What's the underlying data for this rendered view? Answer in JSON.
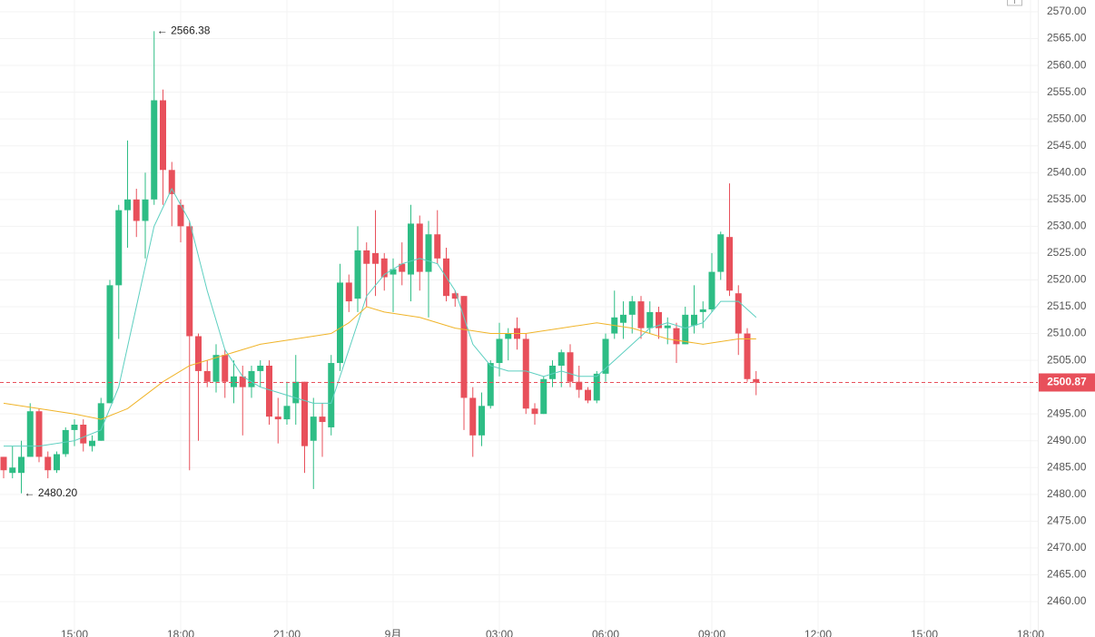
{
  "chart_data": {
    "type": "candlestick",
    "up_color": "#2ebd85",
    "down_color": "#e8505b",
    "grid": true,
    "xlim": [
      -0.41,
      116.82
    ],
    "ylim": [
      2453.4,
      2572.2
    ],
    "xticks": [
      {
        "value": 8,
        "label": "15:00"
      },
      {
        "value": 20,
        "label": "18:00"
      },
      {
        "value": 32,
        "label": "21:00"
      },
      {
        "value": 44,
        "label": "9月"
      },
      {
        "value": 56,
        "label": "03:00"
      },
      {
        "value": 68,
        "label": "06:00"
      },
      {
        "value": 80,
        "label": "09:00"
      },
      {
        "value": 92,
        "label": "12:00"
      },
      {
        "value": 104,
        "label": "15:00"
      },
      {
        "value": 116,
        "label": "18:00"
      }
    ],
    "yticks": [
      {
        "value": 2460,
        "label": "2460.00"
      },
      {
        "value": 2465,
        "label": "2465.00"
      },
      {
        "value": 2470,
        "label": "2470.00"
      },
      {
        "value": 2475,
        "label": "2475.00"
      },
      {
        "value": 2480,
        "label": "2480.00"
      },
      {
        "value": 2485,
        "label": "2485.00"
      },
      {
        "value": 2490,
        "label": "2490.00"
      },
      {
        "value": 2495,
        "label": "2495.00"
      },
      {
        "value": 2500,
        "label": "2500.00"
      },
      {
        "value": 2505,
        "label": "2505.00"
      },
      {
        "value": 2510,
        "label": "2510.00"
      },
      {
        "value": 2515,
        "label": "2515.00"
      },
      {
        "value": 2520,
        "label": "2520.00"
      },
      {
        "value": 2525,
        "label": "2525.00"
      },
      {
        "value": 2530,
        "label": "2530.00"
      },
      {
        "value": 2535,
        "label": "2535.00"
      },
      {
        "value": 2540,
        "label": "2540.00"
      },
      {
        "value": 2545,
        "label": "2545.00"
      },
      {
        "value": 2550,
        "label": "2550.00"
      },
      {
        "value": 2555,
        "label": "2555.00"
      },
      {
        "value": 2560,
        "label": "2560.00"
      },
      {
        "value": 2565,
        "label": "2565.00"
      },
      {
        "value": 2570,
        "label": "2570.00"
      }
    ],
    "candles": {
      "open": [
        2487,
        2484,
        2484,
        2487,
        2495.5,
        2487,
        2484.5,
        2487.5,
        2492,
        2493,
        2489,
        2490,
        2497,
        2519,
        2533,
        2535,
        2531,
        2535,
        2553.5,
        2540.5,
        2534,
        2530,
        2509.5,
        2503,
        2501,
        2506,
        2500,
        2502,
        2500,
        2503,
        2504,
        2494.5,
        2494,
        2497,
        2501,
        2490,
        2494.5,
        2492.5,
        2504.5,
        2519.5,
        2516.5,
        2525.5,
        2525,
        2524,
        2521,
        2523,
        2521,
        2530.5,
        2521.5,
        2528.5,
        2524,
        2517.5,
        2517,
        2498,
        2491,
        2496.5,
        2504.5,
        2509,
        2511,
        2509,
        2496,
        2495,
        2501.5,
        2504,
        2506.5,
        2501,
        2499.5,
        2497.5,
        2502.5,
        2510,
        2512,
        2513.5,
        2516,
        2511,
        2514,
        2511,
        2511,
        2508,
        2511.5,
        2514,
        2514.5,
        2521.5,
        2528,
        2517.5,
        2510,
        2501.5
      ],
      "high": [
        2487,
        2489,
        2490,
        2497,
        2496,
        2488,
        2488,
        2492.5,
        2494,
        2494,
        2491,
        2498,
        2520,
        2534,
        2546,
        2537,
        2540,
        2566.38,
        2555.5,
        2542,
        2535,
        2531,
        2510,
        2505,
        2508,
        2507,
        2505,
        2504,
        2504,
        2505,
        2505,
        2498,
        2501,
        2506,
        2501,
        2498,
        2497,
        2506,
        2523,
        2521,
        2530,
        2527,
        2533,
        2525,
        2524,
        2527,
        2534,
        2532,
        2531,
        2533,
        2526,
        2518,
        2517,
        2500,
        2499,
        2505,
        2512,
        2511,
        2513,
        2510,
        2497,
        2502,
        2505,
        2507,
        2508,
        2504,
        2500,
        2503,
        2510,
        2518,
        2516,
        2517,
        2517,
        2516,
        2515,
        2513,
        2512,
        2515,
        2519,
        2516,
        2525,
        2529,
        2538,
        2519,
        2511,
        2503
      ],
      "low": [
        2483,
        2483,
        2480.2,
        2487,
        2486,
        2483,
        2484,
        2487,
        2489,
        2488,
        2488,
        2490,
        2497,
        2509,
        2526,
        2528,
        2524,
        2534,
        2534,
        2530,
        2527,
        2484.5,
        2490,
        2500,
        2499,
        2498,
        2497,
        2491,
        2498,
        2500,
        2493,
        2489.5,
        2493,
        2493,
        2484,
        2481,
        2487,
        2491,
        2503,
        2514,
        2514,
        2515,
        2517,
        2518,
        2514,
        2519,
        2516,
        2518,
        2513,
        2523,
        2516,
        2515,
        2492,
        2487,
        2489,
        2496,
        2502,
        2505,
        2507,
        2495,
        2493,
        2495,
        2500,
        2500,
        2500,
        2498,
        2497,
        2497,
        2501,
        2509,
        2509,
        2510,
        2509,
        2510,
        2509,
        2508,
        2504.5,
        2508,
        2510,
        2511,
        2514,
        2520,
        2517,
        2506,
        2501,
        2498.5
      ],
      "close": [
        2484.5,
        2485,
        2487,
        2495.5,
        2487,
        2484.5,
        2487.5,
        2492,
        2493,
        2489.5,
        2490,
        2497,
        2519,
        2533,
        2535,
        2531,
        2535,
        2553.5,
        2540.5,
        2536,
        2530,
        2509.5,
        2503,
        2501,
        2506,
        2501,
        2502,
        2500,
        2503,
        2504,
        2494.5,
        2494,
        2496.5,
        2501,
        2489,
        2494.5,
        2493.5,
        2504.5,
        2519.5,
        2516,
        2525.5,
        2523,
        2523,
        2520.5,
        2522,
        2521.5,
        2530.5,
        2521.5,
        2528.5,
        2524,
        2517,
        2516.5,
        2498,
        2491,
        2496.5,
        2504.5,
        2509,
        2510,
        2509,
        2496,
        2495,
        2501.5,
        2504,
        2506.5,
        2501,
        2499.5,
        2497.5,
        2502.5,
        2509,
        2513,
        2513.5,
        2516,
        2511,
        2514,
        2511,
        2511.5,
        2508,
        2513.5,
        2513.5,
        2514.5,
        2521.5,
        2528.5,
        2518,
        2510,
        2501.5,
        2500.87
      ]
    },
    "ma": [
      {
        "color": "#5dcfc0",
        "x": [
          0,
          4,
          8,
          11,
          13,
          15,
          17,
          19,
          21,
          23,
          25,
          27,
          29,
          31,
          33,
          35,
          37,
          39,
          41,
          43,
          45,
          47,
          49,
          51,
          53,
          55,
          57,
          59,
          61,
          63,
          65,
          67,
          69,
          71,
          73,
          75,
          77,
          79,
          81,
          83,
          85
        ],
        "values": [
          2489,
          2489,
          2490,
          2492,
          2500,
          2515,
          2530,
          2537,
          2531,
          2518,
          2507,
          2502,
          2500,
          2499,
          2498,
          2497,
          2497,
          2507,
          2517,
          2521,
          2523,
          2524,
          2523,
          2518,
          2508,
          2504,
          2503,
          2503,
          2502,
          2503,
          2502,
          2502,
          2505,
          2508,
          2511,
          2512,
          2511,
          2512,
          2516,
          2516,
          2513
        ]
      },
      {
        "color": "#f0b429",
        "x": [
          0,
          8,
          11,
          14,
          18,
          21,
          25,
          29,
          33,
          37,
          39,
          41,
          43,
          47,
          51,
          55,
          59,
          63,
          67,
          71,
          75,
          79,
          83,
          85
        ],
        "values": [
          2497,
          2495,
          2494,
          2496,
          2501,
          2504,
          2506,
          2508,
          2509,
          2510,
          2512,
          2515,
          2514,
          2513,
          2511,
          2510,
          2510,
          2511,
          2512,
          2511,
          2509,
          2508,
          2509,
          2509
        ]
      }
    ],
    "last_price": 2500.87,
    "annotations": {
      "high": "← 2566.38",
      "low": "← 2480.20"
    }
  }
}
